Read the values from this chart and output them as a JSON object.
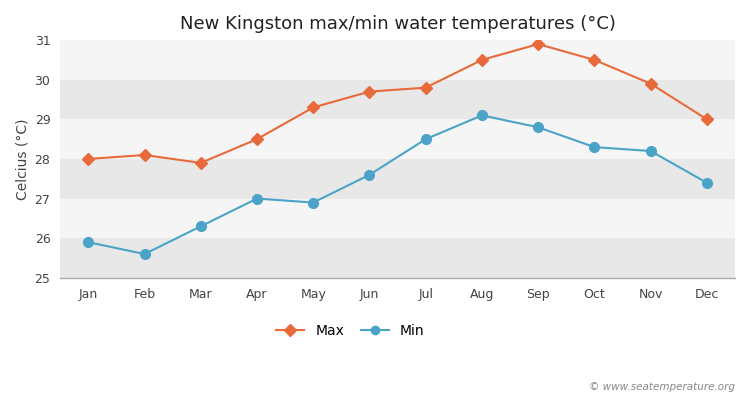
{
  "title": "New Kingston max/min water temperatures (°C)",
  "ylabel": "Celcius (°C)",
  "months": [
    "Jan",
    "Feb",
    "Mar",
    "Apr",
    "May",
    "Jun",
    "Jul",
    "Aug",
    "Sep",
    "Oct",
    "Nov",
    "Dec"
  ],
  "max_values": [
    28.0,
    28.1,
    27.9,
    28.5,
    29.3,
    29.7,
    29.8,
    30.5,
    30.9,
    30.5,
    29.9,
    29.0
  ],
  "min_values": [
    25.9,
    25.6,
    26.3,
    27.0,
    26.9,
    27.6,
    28.5,
    29.1,
    28.8,
    28.3,
    28.2,
    27.4
  ],
  "max_color": "#e8693a",
  "min_color": "#4ca3c8",
  "bg_color": "#ffffff",
  "band_colors": [
    "#e8e8e8",
    "#f5f5f5"
  ],
  "ylim": [
    25,
    31
  ],
  "yticks": [
    25,
    26,
    27,
    28,
    29,
    30,
    31
  ],
  "legend_labels": [
    "Max",
    "Min"
  ],
  "watermark": "© www.seatemperature.org",
  "title_fontsize": 13,
  "axis_label_fontsize": 10,
  "tick_fontsize": 9,
  "legend_fontsize": 10
}
